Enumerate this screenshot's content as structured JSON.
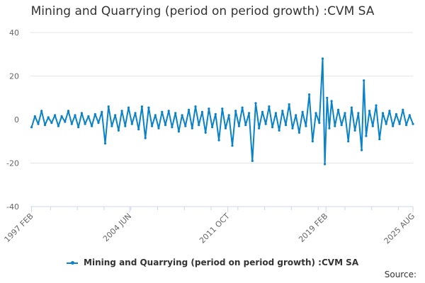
{
  "chart_data": {
    "type": "line",
    "title": "Mining and Quarrying (period on period growth) :CVM SA",
    "ylim": [
      -40,
      40
    ],
    "yticks": [
      -40,
      -20,
      0,
      20,
      40
    ],
    "xlim": [
      "1997-01",
      "2025-08"
    ],
    "xticks": [
      {
        "label": "1997 FEB",
        "date": "1997-02"
      },
      {
        "label": "2004 JUN",
        "date": "2004-06"
      },
      {
        "label": "2011 OCT",
        "date": "2011-10"
      },
      {
        "label": "2019 FEB",
        "date": "2019-02"
      },
      {
        "label": "2025 AUG",
        "date": "2025-08"
      }
    ],
    "grid": "horizontal",
    "legend_position": "bottom",
    "series": [
      {
        "name": "Mining and Quarrying (period on period growth) :CVM SA",
        "color": "#0a82c8",
        "points": [
          [
            "1997-02",
            -3.5
          ],
          [
            "1997-05",
            1.5
          ],
          [
            "1997-08",
            -2
          ],
          [
            "1997-11",
            4
          ],
          [
            "1998-02",
            -2.5
          ],
          [
            "1998-05",
            1
          ],
          [
            "1998-08",
            -1.5
          ],
          [
            "1998-11",
            2
          ],
          [
            "1999-02",
            -3
          ],
          [
            "1999-05",
            1.5
          ],
          [
            "1999-08",
            -1
          ],
          [
            "1999-11",
            4
          ],
          [
            "2000-02",
            -2
          ],
          [
            "2000-05",
            2
          ],
          [
            "2000-08",
            -3.5
          ],
          [
            "2000-11",
            3
          ],
          [
            "2001-02",
            -2
          ],
          [
            "2001-05",
            1.5
          ],
          [
            "2001-08",
            -3
          ],
          [
            "2001-11",
            2.5
          ],
          [
            "2002-02",
            -1.5
          ],
          [
            "2002-05",
            3.5
          ],
          [
            "2002-08",
            -11
          ],
          [
            "2002-11",
            6
          ],
          [
            "2003-02",
            -3
          ],
          [
            "2003-05",
            2
          ],
          [
            "2003-08",
            -5
          ],
          [
            "2003-11",
            4
          ],
          [
            "2004-02",
            -3
          ],
          [
            "2004-05",
            5.5
          ],
          [
            "2004-08",
            -2
          ],
          [
            "2004-11",
            3
          ],
          [
            "2005-02",
            -4.5
          ],
          [
            "2005-05",
            6
          ],
          [
            "2005-08",
            -8.5
          ],
          [
            "2005-11",
            5.5
          ],
          [
            "2006-02",
            -3
          ],
          [
            "2006-05",
            2
          ],
          [
            "2006-08",
            -4
          ],
          [
            "2006-11",
            3.5
          ],
          [
            "2007-02",
            -2.5
          ],
          [
            "2007-05",
            4
          ],
          [
            "2007-08",
            -3.5
          ],
          [
            "2007-11",
            3
          ],
          [
            "2008-02",
            -5.5
          ],
          [
            "2008-05",
            2
          ],
          [
            "2008-08",
            -3
          ],
          [
            "2008-11",
            4.5
          ],
          [
            "2009-02",
            -4
          ],
          [
            "2009-05",
            6
          ],
          [
            "2009-08",
            -2.5
          ],
          [
            "2009-11",
            3.5
          ],
          [
            "2010-02",
            -6
          ],
          [
            "2010-05",
            5
          ],
          [
            "2010-08",
            -3.5
          ],
          [
            "2010-11",
            2.5
          ],
          [
            "2011-02",
            -9.5
          ],
          [
            "2011-05",
            5
          ],
          [
            "2011-08",
            -4
          ],
          [
            "2011-11",
            2
          ],
          [
            "2012-02",
            -12
          ],
          [
            "2012-05",
            4
          ],
          [
            "2012-08",
            -3
          ],
          [
            "2012-11",
            5.5
          ],
          [
            "2013-02",
            -2.5
          ],
          [
            "2013-05",
            3
          ],
          [
            "2013-08",
            -19
          ],
          [
            "2013-11",
            7.5
          ],
          [
            "2014-02",
            -4
          ],
          [
            "2014-05",
            3.5
          ],
          [
            "2014-08",
            -2
          ],
          [
            "2014-11",
            6
          ],
          [
            "2015-02",
            -3.5
          ],
          [
            "2015-05",
            3
          ],
          [
            "2015-08",
            -5
          ],
          [
            "2015-11",
            4
          ],
          [
            "2016-02",
            -2.5
          ],
          [
            "2016-05",
            7
          ],
          [
            "2016-08",
            -4
          ],
          [
            "2016-11",
            2
          ],
          [
            "2017-02",
            -6
          ],
          [
            "2017-05",
            3.5
          ],
          [
            "2017-08",
            -3
          ],
          [
            "2017-11",
            11.5
          ],
          [
            "2018-02",
            -10
          ],
          [
            "2018-05",
            3
          ],
          [
            "2018-08",
            -1.5
          ],
          [
            "2018-11",
            28
          ],
          [
            "2019-01",
            -20.5
          ],
          [
            "2019-03",
            10
          ],
          [
            "2019-05",
            -4
          ],
          [
            "2019-07",
            8.5
          ],
          [
            "2019-10",
            -3
          ],
          [
            "2020-01",
            4.5
          ],
          [
            "2020-04",
            -2.5
          ],
          [
            "2020-07",
            3
          ],
          [
            "2020-10",
            -10
          ],
          [
            "2021-01",
            5.5
          ],
          [
            "2021-04",
            -5
          ],
          [
            "2021-07",
            3
          ],
          [
            "2021-10",
            -14
          ],
          [
            "2021-12",
            18
          ],
          [
            "2022-02",
            -7.5
          ],
          [
            "2022-05",
            4
          ],
          [
            "2022-08",
            -3
          ],
          [
            "2022-11",
            6.5
          ],
          [
            "2023-02",
            -9
          ],
          [
            "2023-05",
            3
          ],
          [
            "2023-08",
            -2
          ],
          [
            "2023-11",
            4
          ],
          [
            "2024-02",
            -3
          ],
          [
            "2024-05",
            2.5
          ],
          [
            "2024-08",
            -2
          ],
          [
            "2024-11",
            4.5
          ],
          [
            "2025-02",
            -2.5
          ],
          [
            "2025-05",
            2
          ],
          [
            "2025-08",
            -2
          ]
        ]
      }
    ]
  },
  "legend": {
    "label": "Mining and Quarrying (period on period growth) :CVM SA"
  },
  "source": {
    "label": "Source:"
  }
}
